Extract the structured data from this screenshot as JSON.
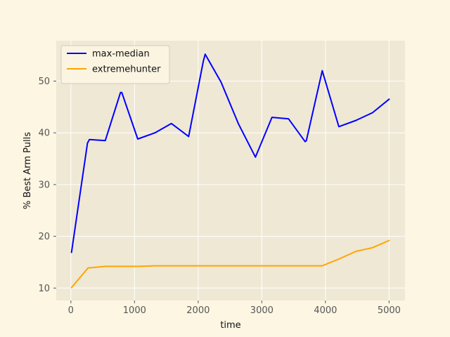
{
  "chart_data": {
    "type": "line",
    "xlabel": "time",
    "ylabel": "% Best Arm Pulls",
    "xlim": [
      -230,
      5250
    ],
    "ylim": [
      7.6,
      57.8
    ],
    "x_ticks": [
      0,
      1000,
      2000,
      3000,
      4000,
      5000
    ],
    "y_ticks": [
      10,
      20,
      30,
      40,
      50
    ],
    "x_tick_labels": [
      "0",
      "1000",
      "2000",
      "3000",
      "4000",
      "5000"
    ],
    "y_tick_labels": [
      "10",
      "20",
      "30",
      "40",
      "50"
    ],
    "grid": true,
    "legend_position": "top-left",
    "colors": {
      "plot_background": "#efe8d5",
      "page_background": "#fdf6e3",
      "grid": "#ffffff"
    },
    "series": [
      {
        "name": "max-median",
        "color": "#0000ff",
        "x": [
          10,
          260,
          290,
          540,
          780,
          800,
          1050,
          1320,
          1580,
          1850,
          2080,
          2110,
          2360,
          2630,
          2900,
          3160,
          3420,
          3680,
          3700,
          3950,
          4210,
          4480,
          4740,
          5000
        ],
        "y": [
          16.9,
          38.0,
          38.7,
          38.5,
          47.8,
          47.8,
          38.8,
          40.0,
          41.8,
          39.3,
          53.8,
          55.2,
          49.8,
          41.8,
          35.3,
          43.0,
          42.7,
          38.3,
          38.5,
          52.0,
          41.2,
          42.4,
          43.9,
          46.5
        ]
      },
      {
        "name": "extremehunter",
        "color": "#ffa500",
        "x": [
          10,
          270,
          540,
          800,
          1050,
          1320,
          1580,
          1850,
          2110,
          2360,
          2630,
          2900,
          3160,
          3420,
          3680,
          3950,
          4210,
          4480,
          4740,
          5000
        ],
        "y": [
          10.1,
          13.9,
          14.2,
          14.2,
          14.2,
          14.3,
          14.3,
          14.3,
          14.3,
          14.3,
          14.3,
          14.3,
          14.3,
          14.3,
          14.3,
          14.3,
          15.6,
          17.1,
          17.8,
          19.2
        ]
      }
    ]
  }
}
